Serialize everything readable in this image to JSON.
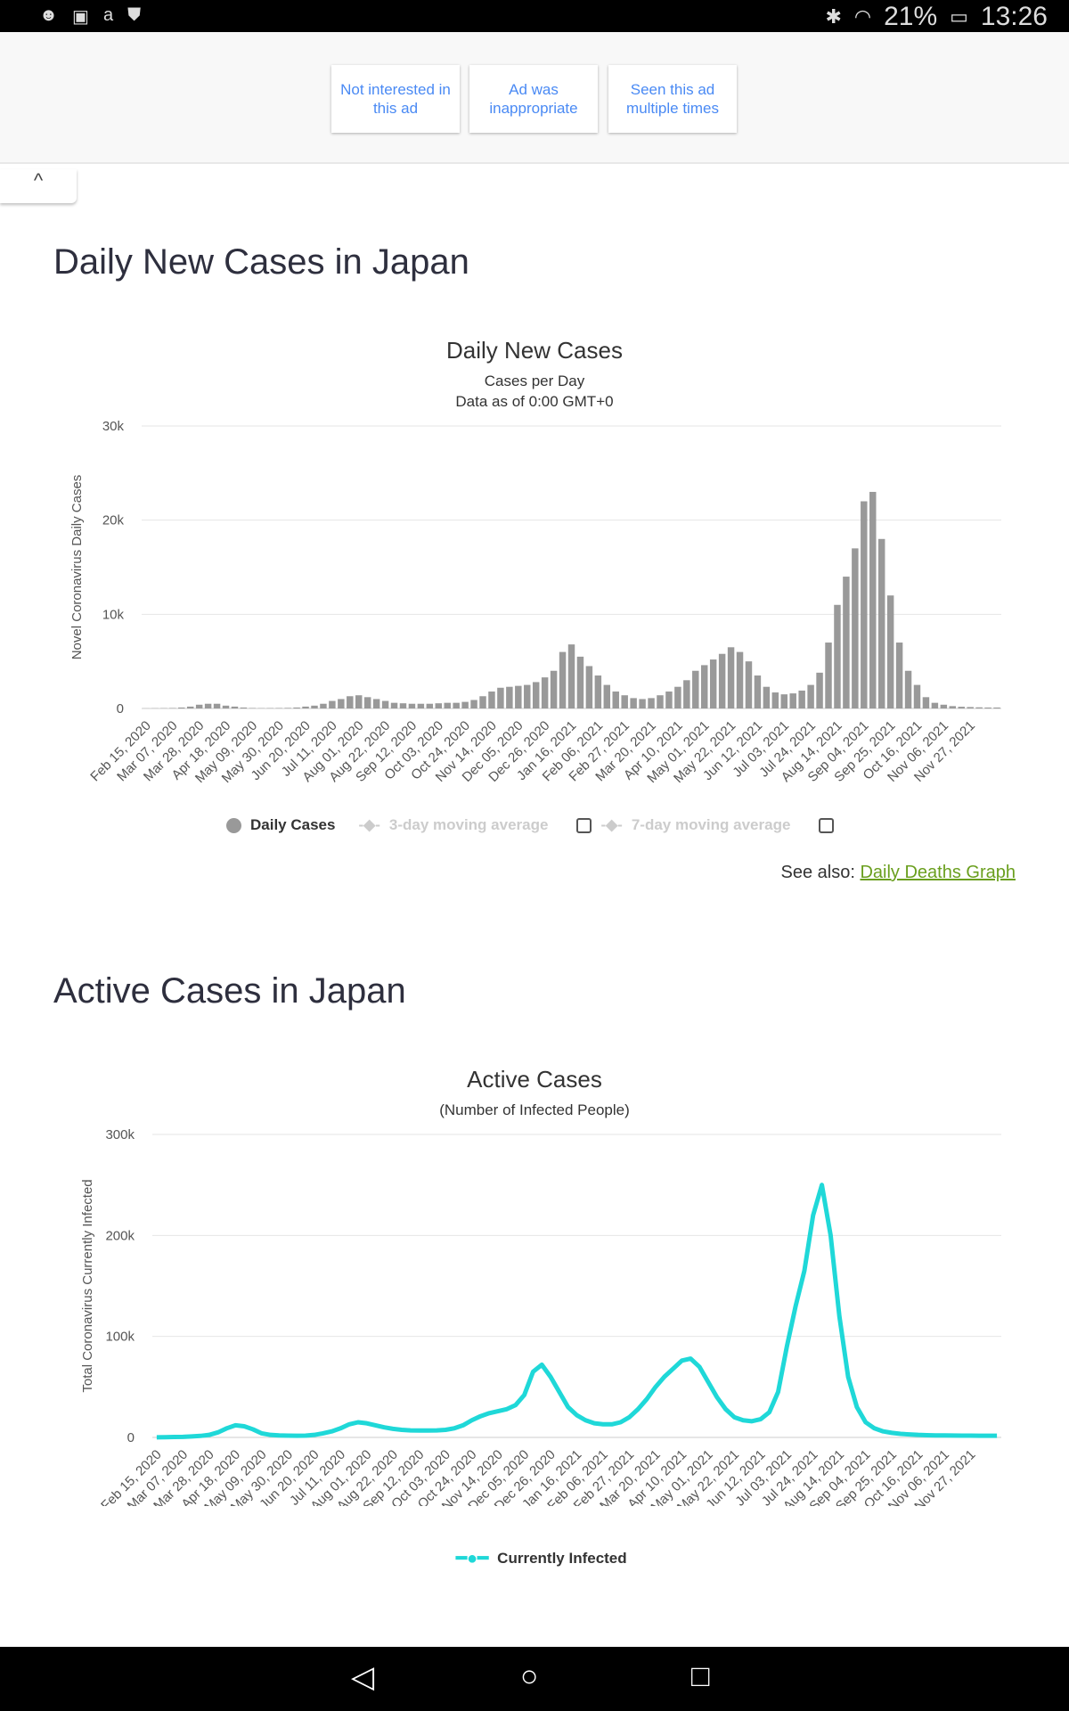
{
  "status_bar": {
    "battery": "21%",
    "time": "13:26",
    "icons": [
      "android-icon",
      "image-icon",
      "amazon-icon",
      "shield-icon",
      "bluetooth-icon",
      "wifi-icon",
      "battery-charging-icon"
    ]
  },
  "ad_feedback": {
    "buttons": [
      "Not interested in this ad",
      "Ad was inappropriate",
      "Seen this ad multiple times"
    ]
  },
  "collapse_label": "^",
  "daily_section": {
    "heading": "Daily New Cases in Japan",
    "see_also_label": "See also:",
    "see_also_link": "Daily Deaths Graph"
  },
  "active_section": {
    "heading": "Active Cases in Japan"
  },
  "chart_data": [
    {
      "type": "bar",
      "title": "Daily New Cases",
      "subtitle": [
        "Cases per Day",
        "Data as of 0:00 GMT+0"
      ],
      "ylabel": "Novel Coronavirus Daily Cases",
      "ylim": [
        0,
        30000
      ],
      "yticks": [
        "0",
        "10k",
        "20k",
        "30k"
      ],
      "ytick_values": [
        0,
        10000,
        20000,
        30000
      ],
      "xticks": [
        "Feb 15, 2020",
        "Mar 07, 2020",
        "Mar 28, 2020",
        "Apr 18, 2020",
        "May 09, 2020",
        "May 30, 2020",
        "Jun 20, 2020",
        "Jul 11, 2020",
        "Aug 01, 2020",
        "Aug 22, 2020",
        "Sep 12, 2020",
        "Oct 03, 2020",
        "Oct 24, 2020",
        "Nov 14, 2020",
        "Dec 05, 2020",
        "Dec 26, 2020",
        "Jan 16, 2021",
        "Feb 06, 2021",
        "Feb 27, 2021",
        "Mar 20, 2021",
        "Apr 10, 2021",
        "May 01, 2021",
        "May 22, 2021",
        "Jun 12, 2021",
        "Jul 03, 2021",
        "Jul 24, 2021",
        "Aug 14, 2021",
        "Sep 04, 2021",
        "Sep 25, 2021",
        "Oct 16, 2021",
        "Nov 06, 2021",
        "Nov 27, 2021"
      ],
      "x_step": "weekly",
      "color": "#999999",
      "legend": [
        {
          "label": "Daily Cases",
          "active": true
        },
        {
          "label": "3-day moving average",
          "active": false
        },
        {
          "label": "7-day moving average",
          "active": false
        }
      ],
      "values": [
        10,
        20,
        30,
        50,
        100,
        200,
        400,
        500,
        500,
        300,
        200,
        100,
        50,
        30,
        40,
        50,
        60,
        100,
        200,
        300,
        500,
        800,
        1000,
        1300,
        1400,
        1200,
        1000,
        800,
        600,
        550,
        500,
        500,
        500,
        550,
        600,
        600,
        700,
        900,
        1300,
        1800,
        2200,
        2300,
        2400,
        2500,
        2800,
        3300,
        4000,
        6000,
        6800,
        5500,
        4500,
        3500,
        2500,
        1800,
        1400,
        1100,
        1000,
        1100,
        1400,
        1800,
        2300,
        3000,
        4000,
        4600,
        5200,
        5800,
        6500,
        6000,
        5000,
        3500,
        2300,
        1700,
        1500,
        1600,
        1900,
        2500,
        3800,
        7000,
        11000,
        14000,
        17000,
        22000,
        23000,
        18000,
        12000,
        7000,
        4000,
        2500,
        1200,
        600,
        400,
        250,
        180,
        150,
        120,
        100,
        100
      ]
    },
    {
      "type": "line",
      "title": "Active Cases",
      "subtitle": [
        "(Number of Infected People)"
      ],
      "ylabel": "Total Coronavirus Currently Infected",
      "ylim": [
        0,
        300000
      ],
      "yticks": [
        "0",
        "100k",
        "200k",
        "300k"
      ],
      "ytick_values": [
        0,
        100000,
        200000,
        300000
      ],
      "xticks": [
        "Feb 15, 2020",
        "Mar 07, 2020",
        "Mar 28, 2020",
        "Apr 18, 2020",
        "May 09, 2020",
        "May 30, 2020",
        "Jun 20, 2020",
        "Jul 11, 2020",
        "Aug 01, 2020",
        "Aug 22, 2020",
        "Sep 12, 2020",
        "Oct 03, 2020",
        "Oct 24, 2020",
        "Nov 14, 2020",
        "Dec 05, 2020",
        "Dec 26, 2020",
        "Jan 16, 2021",
        "Feb 06, 2021",
        "Feb 27, 2021",
        "Mar 20, 2021",
        "Apr 10, 2021",
        "May 01, 2021",
        "May 22, 2021",
        "Jun 12, 2021",
        "Jul 03, 2021",
        "Jul 24, 2021",
        "Aug 14, 2021",
        "Sep 04, 2021",
        "Sep 25, 2021",
        "Oct 16, 2021",
        "Nov 06, 2021",
        "Nov 27, 2021"
      ],
      "x_step": "weekly",
      "color": "#1fd8d8",
      "legend": [
        {
          "label": "Currently Infected",
          "active": true
        }
      ],
      "values": [
        100,
        200,
        400,
        600,
        1000,
        1500,
        2500,
        5000,
        9000,
        12000,
        11000,
        8000,
        4000,
        2500,
        2000,
        1800,
        1700,
        1800,
        2500,
        4000,
        6000,
        9000,
        13000,
        15000,
        14000,
        12000,
        10000,
        8500,
        7500,
        7000,
        6800,
        6800,
        7000,
        7500,
        9000,
        12000,
        17000,
        21000,
        24000,
        26000,
        28000,
        32000,
        42000,
        65000,
        72000,
        60000,
        45000,
        30000,
        22000,
        17000,
        14000,
        13000,
        13000,
        15000,
        20000,
        28000,
        38000,
        50000,
        60000,
        68000,
        76000,
        78000,
        70000,
        55000,
        40000,
        28000,
        20000,
        17000,
        16000,
        18000,
        25000,
        45000,
        90000,
        130000,
        165000,
        220000,
        250000,
        200000,
        120000,
        60000,
        30000,
        15000,
        9000,
        6000,
        4500,
        3500,
        3000,
        2500,
        2200,
        2000,
        2000,
        1900,
        1800,
        1800,
        1700,
        1700,
        1700
      ]
    }
  ]
}
